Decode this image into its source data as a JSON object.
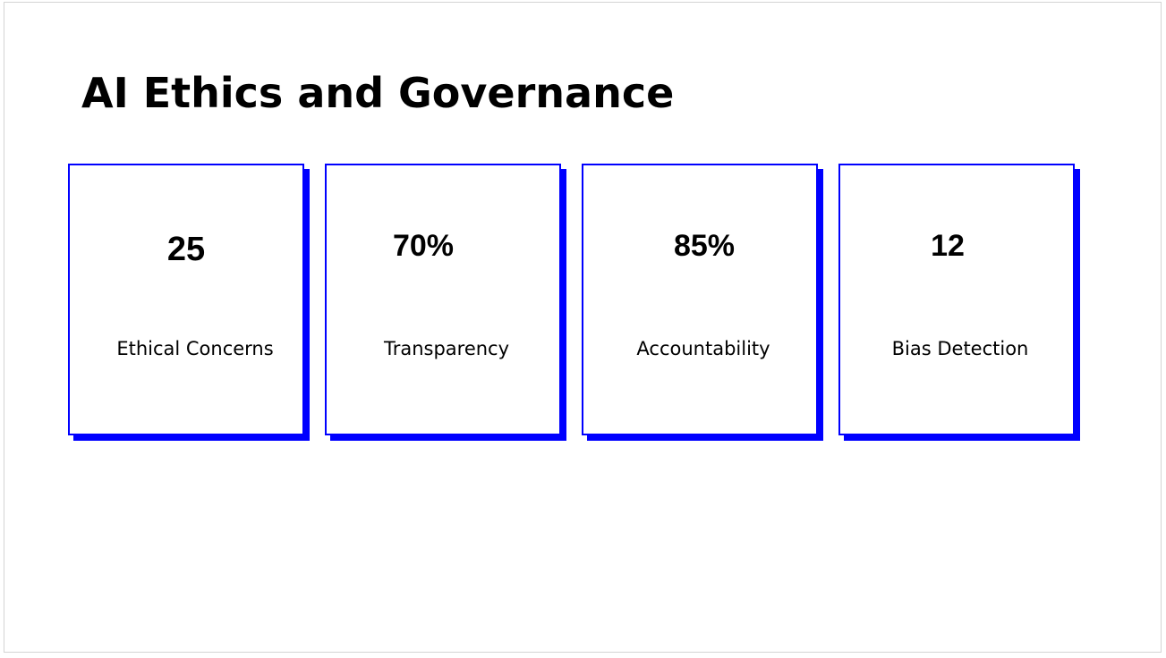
{
  "slide": {
    "title": "AI Ethics and Governance"
  },
  "cards": [
    {
      "value": "25",
      "label": "Ethical Concerns"
    },
    {
      "value": "70%",
      "label": "Transparency"
    },
    {
      "value": "85%",
      "label": "Accountability"
    },
    {
      "value": "12",
      "label": "Bias Detection"
    }
  ],
  "colors": {
    "accent": "#0000ff",
    "text": "#000000",
    "background": "#ffffff"
  }
}
